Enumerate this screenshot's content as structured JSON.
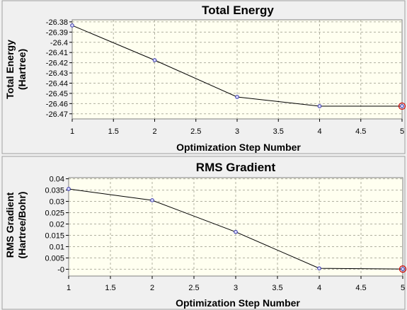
{
  "chart_data": [
    {
      "type": "line",
      "title": "Total Energy",
      "xlabel": "Optimization Step Number",
      "ylabel_lines": [
        "Total Energy",
        "(Hartree)"
      ],
      "x": [
        1,
        2,
        3,
        4,
        5
      ],
      "values": [
        -26.3835,
        -26.4175,
        -26.4535,
        -26.4625,
        -26.4625
      ],
      "xlim": [
        1,
        5
      ],
      "ylim": [
        -26.475,
        -26.378
      ],
      "xticks": [
        1,
        1.5,
        2,
        2.5,
        3,
        3.5,
        4,
        4.5,
        5
      ],
      "xtick_labels": [
        "1",
        "1.5",
        "2",
        "2.5",
        "3",
        "3.5",
        "4",
        "4.5",
        "5"
      ],
      "yticks": [
        -26.38,
        -26.39,
        -26.4,
        -26.41,
        -26.42,
        -26.43,
        -26.44,
        -26.45,
        -26.46,
        -26.47
      ],
      "ytick_labels": [
        "-26.38",
        "-26.39",
        "-26.4",
        "-26.41",
        "-26.42",
        "-26.43",
        "-26.44",
        "-26.45",
        "-26.46",
        "-26.47"
      ],
      "grid": true,
      "last_point_highlight": true
    },
    {
      "type": "line",
      "title": "RMS Gradient",
      "xlabel": "Optimization Step Number",
      "ylabel_lines": [
        "RMS Gradient",
        "(Hartree/Bohr)"
      ],
      "x": [
        1,
        2,
        3,
        4,
        5
      ],
      "values": [
        0.0355,
        0.0305,
        0.0165,
        0.0004,
        0.0001
      ],
      "xlim": [
        1,
        5
      ],
      "ylim": [
        -0.003,
        0.0405
      ],
      "xticks": [
        1,
        1.5,
        2,
        2.5,
        3,
        3.5,
        4,
        4.5,
        5
      ],
      "xtick_labels": [
        "1",
        "1.5",
        "2",
        "2.5",
        "3",
        "3.5",
        "4",
        "4.5",
        "5"
      ],
      "yticks": [
        0.04,
        0.035,
        0.03,
        0.025,
        0.02,
        0.015,
        0.01,
        0.005,
        0
      ],
      "ytick_labels": [
        "0.04",
        "0.035",
        "0.03",
        "0.025",
        "0.02",
        "0.015",
        "0.01",
        "0.005",
        "-0"
      ],
      "grid": true,
      "last_point_highlight": true
    }
  ],
  "colors": {
    "window_bg": "#f0f0f0",
    "plot_bg": "#fffff0",
    "grid": "#b0b0a0",
    "line": "#000000",
    "marker": "#3333aa",
    "highlight": "#cc0000",
    "frame": "#808080"
  }
}
